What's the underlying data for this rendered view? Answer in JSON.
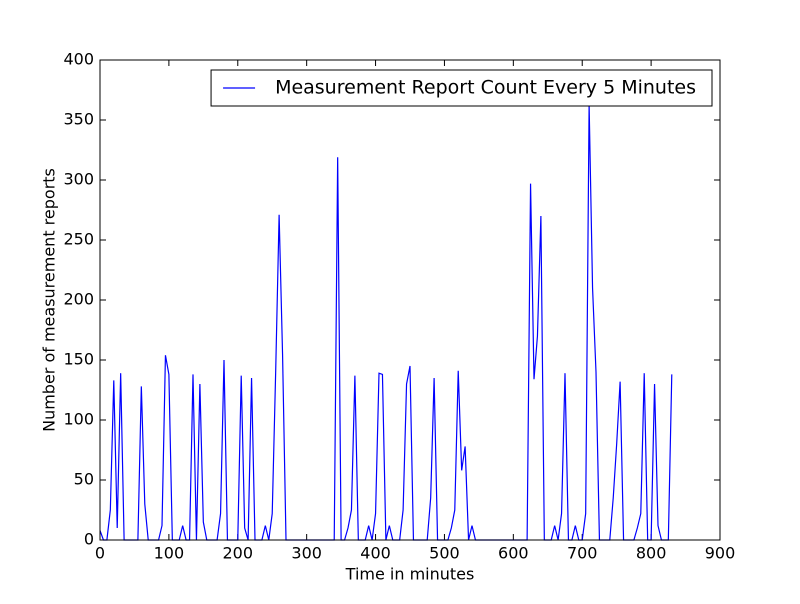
{
  "chart_data": {
    "type": "line",
    "xlabel": "Time in minutes",
    "ylabel": "Number of measurement reports",
    "x": [
      0,
      5,
      10,
      15,
      20,
      25,
      30,
      35,
      40,
      45,
      50,
      55,
      60,
      65,
      70,
      75,
      80,
      85,
      90,
      95,
      100,
      105,
      110,
      115,
      120,
      125,
      130,
      135,
      140,
      145,
      150,
      155,
      160,
      165,
      170,
      175,
      180,
      185,
      190,
      195,
      200,
      205,
      210,
      215,
      220,
      225,
      230,
      235,
      240,
      245,
      250,
      255,
      260,
      265,
      270,
      275,
      280,
      285,
      290,
      295,
      300,
      305,
      310,
      315,
      320,
      325,
      330,
      335,
      340,
      345,
      350,
      355,
      360,
      365,
      370,
      375,
      380,
      385,
      390,
      395,
      400,
      405,
      410,
      415,
      420,
      425,
      430,
      435,
      440,
      445,
      450,
      455,
      460,
      465,
      470,
      475,
      480,
      485,
      490,
      495,
      500,
      505,
      510,
      515,
      520,
      525,
      530,
      535,
      540,
      545,
      550,
      555,
      560,
      565,
      570,
      575,
      580,
      585,
      590,
      595,
      600,
      605,
      610,
      615,
      620,
      625,
      630,
      635,
      640,
      645,
      650,
      655,
      660,
      665,
      670,
      675,
      680,
      685,
      690,
      695,
      700,
      705,
      710,
      715,
      720,
      725,
      730,
      735,
      740,
      745,
      750,
      755,
      760,
      765,
      770,
      775,
      780,
      785,
      790,
      795,
      800,
      805,
      810,
      815,
      820,
      825,
      830
    ],
    "series": [
      {
        "name": "Measurement Report Count Every 5 Minutes",
        "color": "#0000ff",
        "values": [
          8,
          0,
          0,
          25,
          133,
          10,
          139,
          0,
          0,
          0,
          0,
          0,
          128,
          30,
          0,
          0,
          0,
          0,
          12,
          154,
          138,
          0,
          0,
          0,
          12,
          0,
          0,
          138,
          0,
          130,
          15,
          0,
          0,
          0,
          0,
          22,
          150,
          0,
          0,
          0,
          0,
          137,
          10,
          0,
          135,
          0,
          0,
          0,
          12,
          0,
          22,
          140,
          271,
          155,
          0,
          0,
          0,
          0,
          0,
          0,
          0,
          0,
          0,
          0,
          0,
          0,
          0,
          0,
          0,
          319,
          0,
          0,
          10,
          25,
          137,
          0,
          0,
          0,
          12,
          0,
          22,
          139,
          138,
          0,
          12,
          0,
          0,
          0,
          25,
          130,
          145,
          0,
          0,
          0,
          0,
          0,
          35,
          135,
          0,
          0,
          0,
          0,
          10,
          25,
          141,
          58,
          78,
          0,
          12,
          0,
          0,
          0,
          0,
          0,
          0,
          0,
          0,
          0,
          0,
          0,
          0,
          0,
          0,
          0,
          0,
          297,
          134,
          170,
          270,
          0,
          0,
          0,
          12,
          0,
          22,
          139,
          0,
          0,
          12,
          0,
          0,
          22,
          363,
          210,
          140,
          0,
          0,
          0,
          0,
          35,
          80,
          132,
          0,
          0,
          0,
          0,
          10,
          22,
          139,
          0,
          0,
          130,
          12,
          0,
          0,
          0,
          138
        ]
      }
    ],
    "xlim": [
      0,
      900
    ],
    "xticks": [
      0,
      100,
      200,
      300,
      400,
      500,
      600,
      700,
      800,
      900
    ],
    "ylim": [
      0,
      400
    ],
    "yticks": [
      0,
      50,
      100,
      150,
      200,
      250,
      300,
      350,
      400
    ],
    "legend": "upper right",
    "grid": false
  }
}
